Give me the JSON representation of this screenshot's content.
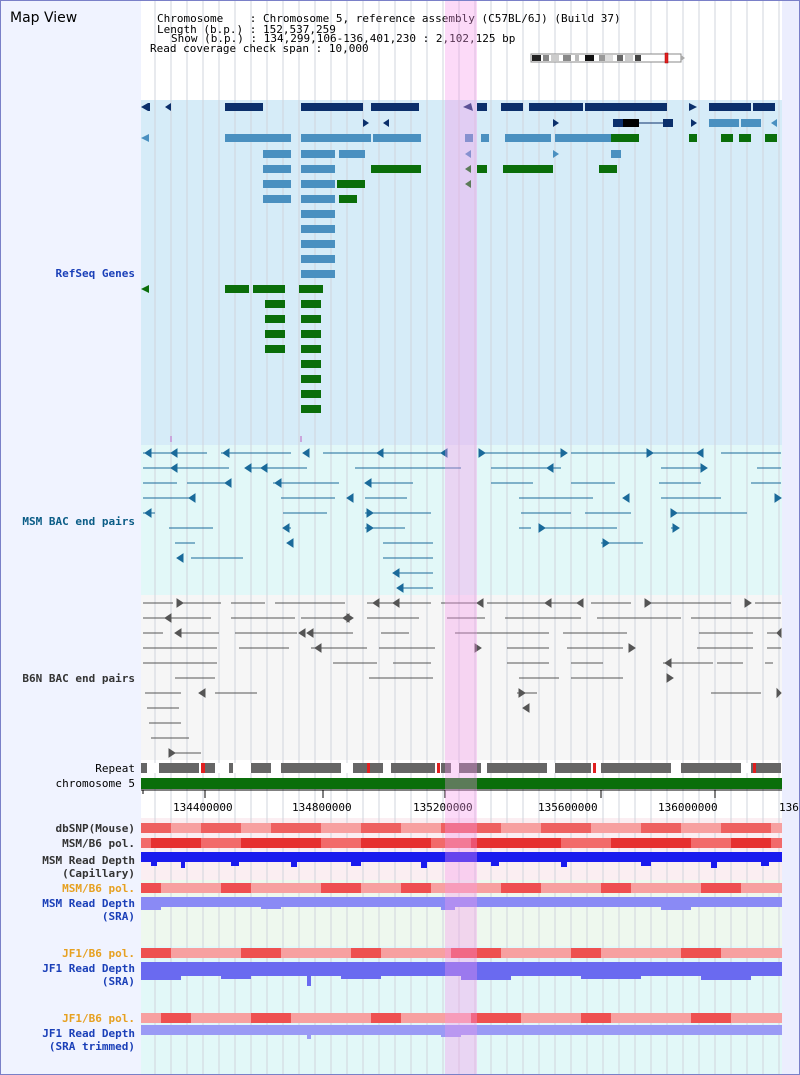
{
  "header": {
    "title": "Map View",
    "chromosome_label": "Chromosome",
    "chromosome_value": "Chromosome 5, reference assembly (C57BL/6J) (Build 37)",
    "length_label": "Length (b.p.)",
    "length_value": "152,537,259",
    "show_label": "Show (b.p.)",
    "show_value": "134,299,106-136,401,230 : 2,102,125 bp",
    "span_label": "Read coverage check span",
    "span_value": "10,000"
  },
  "tracks": {
    "refseq": "RefSeq Genes",
    "msm_bac": "MSM BAC end pairs",
    "b6n_bac": "B6N BAC end pairs",
    "repeat": "Repeat",
    "chromosome": "chromosome 5",
    "dbsnp": "dbSNP(Mouse)",
    "msm_b6_pol": "MSM/B6 pol.",
    "msm_depth_cap_1": "MSM Read Depth",
    "msm_depth_cap_2": "(Capillary)",
    "msm_b6_pol_sra": "MSM/B6 pol.",
    "msm_depth_sra_1": "MSM Read Depth",
    "msm_depth_sra_2": "(SRA)",
    "jf1_b6_pol": "JF1/B6 pol.",
    "jf1_depth_1": "JF1 Read Depth",
    "jf1_depth_2": "(SRA)",
    "jf1_b6_pol_trim": "JF1/B6 pol.",
    "jf1_trim_1": "JF1 Read Depth",
    "jf1_trim_2": "(SRA trimmed)"
  },
  "axis": {
    "ticks": [
      "134400000",
      "134800000",
      "135200000",
      "135600000",
      "136000000",
      "136"
    ]
  },
  "colors": {
    "refseq_bg": "#d6ecf8",
    "gene_dark": "#0b2f6b",
    "gene_mid": "#4a90c0",
    "gene_green": "#0a6e0a",
    "bac_msm": "#1a6a9a",
    "bac_b6n": "#555555",
    "chromosome": "#0a6e0a",
    "depth_blue": "#1a1aee",
    "depth_light": "#8a8af5",
    "pol_red": "#f05050",
    "highlight": "#f596eb"
  }
}
